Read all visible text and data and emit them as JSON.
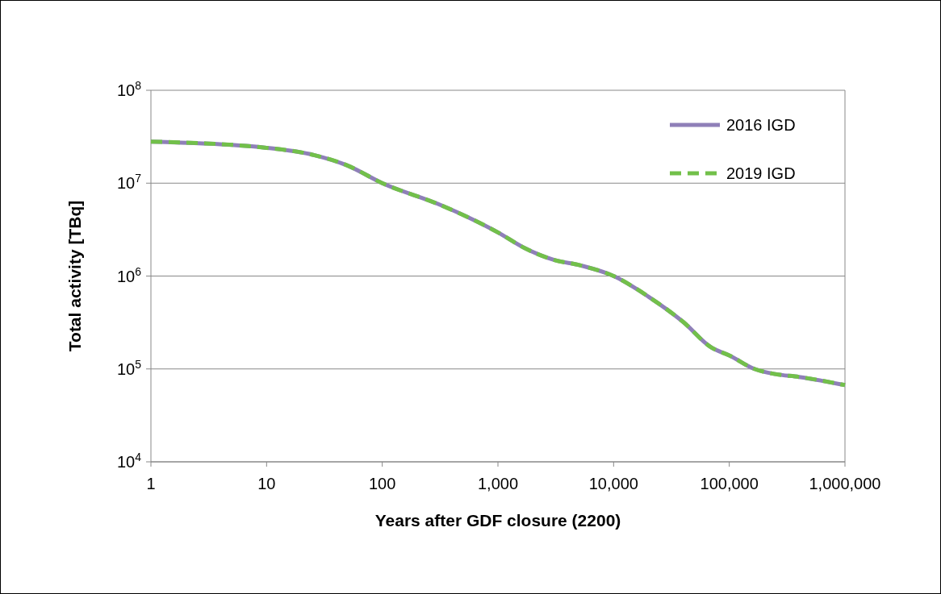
{
  "chart_data": {
    "type": "line",
    "xlabel": "Years after GDF closure (2200)",
    "ylabel": "Total activity [TBq]",
    "log": "xy",
    "grid": "y",
    "legend": "top right",
    "x": [
      1,
      10,
      26,
      50,
      100,
      300,
      550,
      1000,
      1700,
      3000,
      5200,
      10000,
      20000,
      40000,
      70000,
      100000,
      165000,
      250000,
      400000,
      1000000
    ],
    "series": [
      {
        "name": "2016 IGD",
        "color": "#8f80b8",
        "line_style": "solid",
        "values": [
          28000000,
          24000000,
          20000000,
          15500000,
          10000000,
          6000000,
          4300000,
          2950000,
          2000000,
          1500000,
          1300000,
          1000000,
          600000,
          320000,
          170000,
          140000,
          100000,
          88000,
          82000,
          67000
        ]
      },
      {
        "name": "2019 IGD",
        "color": "#72c04a",
        "line_style": "dashed",
        "values": [
          28000000,
          24000000,
          20000000,
          15500000,
          10000000,
          6000000,
          4300000,
          2950000,
          2000000,
          1500000,
          1300000,
          1000000,
          600000,
          320000,
          170000,
          140000,
          100000,
          88000,
          82000,
          67000
        ]
      }
    ],
    "xlim": [
      1,
      1000000
    ],
    "xticks": [
      1,
      10,
      100,
      {
        "value": 1000,
        "label": "1,000"
      },
      {
        "value": 10000,
        "label": "10,000"
      },
      {
        "value": 100000,
        "label": "100,000"
      },
      {
        "value": 1000000,
        "label": "1,000,000"
      }
    ],
    "ylim": [
      10000,
      100000000
    ],
    "yticks": [
      {
        "value": 10000,
        "label": "10$^{4}$"
      },
      {
        "value": 100000,
        "label": "10$^{5}$"
      },
      {
        "value": 1000000,
        "label": "10$^{6}$"
      },
      {
        "value": 10000000,
        "label": "10$^{7}$"
      },
      {
        "value": 100000000,
        "label": "10$^{8}$"
      }
    ]
  }
}
